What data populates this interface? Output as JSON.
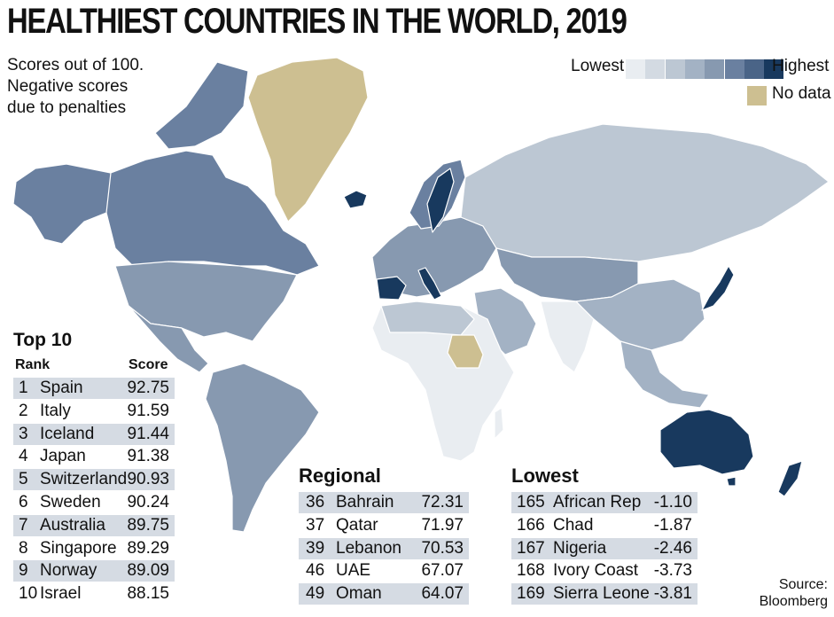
{
  "title": "HEALTHIEST COUNTRIES IN THE WORLD, 2019",
  "subtitle": [
    "Scores out of 100.",
    "Negative scores",
    "due to penalties"
  ],
  "legend": {
    "lowest": "Lowest",
    "highest": "Highest",
    "no_data": "No data",
    "scale_colors": [
      "#e9edf1",
      "#d3dae2",
      "#bcc7d3",
      "#a3b2c4",
      "#8799b0",
      "#6a80a0",
      "#4a6487",
      "#18395e"
    ],
    "no_data_color": "#cdbf91"
  },
  "source": [
    "Source:",
    "Bloomberg"
  ],
  "chart_data": {
    "type": "table",
    "top10": {
      "title": "Top 10",
      "columns": [
        "Rank",
        "Score"
      ],
      "rows": [
        {
          "rank": "1",
          "country": "Spain",
          "score": "92.75"
        },
        {
          "rank": "2",
          "country": "Italy",
          "score": "91.59"
        },
        {
          "rank": "3",
          "country": "Iceland",
          "score": "91.44"
        },
        {
          "rank": "4",
          "country": "Japan",
          "score": "91.38"
        },
        {
          "rank": "5",
          "country": "Switzerland",
          "score": "90.93"
        },
        {
          "rank": "6",
          "country": "Sweden",
          "score": "90.24"
        },
        {
          "rank": "7",
          "country": "Australia",
          "score": "89.75"
        },
        {
          "rank": "8",
          "country": "Singapore",
          "score": "89.29"
        },
        {
          "rank": "9",
          "country": "Norway",
          "score": "89.09"
        },
        {
          "rank": "10",
          "country": "Israel",
          "score": "88.15"
        }
      ]
    },
    "regional": {
      "title": "Regional",
      "rows": [
        {
          "rank": "36",
          "country": "Bahrain",
          "score": "72.31"
        },
        {
          "rank": "37",
          "country": "Qatar",
          "score": "71.97"
        },
        {
          "rank": "39",
          "country": "Lebanon",
          "score": "70.53"
        },
        {
          "rank": "46",
          "country": "UAE",
          "score": "67.07"
        },
        {
          "rank": "49",
          "country": "Oman",
          "score": "64.07"
        }
      ]
    },
    "lowest": {
      "title": "Lowest",
      "rows": [
        {
          "rank": "165",
          "country": "African Rep",
          "score": "-1.10"
        },
        {
          "rank": "166",
          "country": "Chad",
          "score": "-1.87"
        },
        {
          "rank": "167",
          "country": "Nigeria",
          "score": "-2.46"
        },
        {
          "rank": "168",
          "country": "Ivory Coast",
          "score": "-3.73"
        },
        {
          "rank": "169",
          "country": "Sierra Leone",
          "score": "-3.81"
        }
      ]
    }
  }
}
